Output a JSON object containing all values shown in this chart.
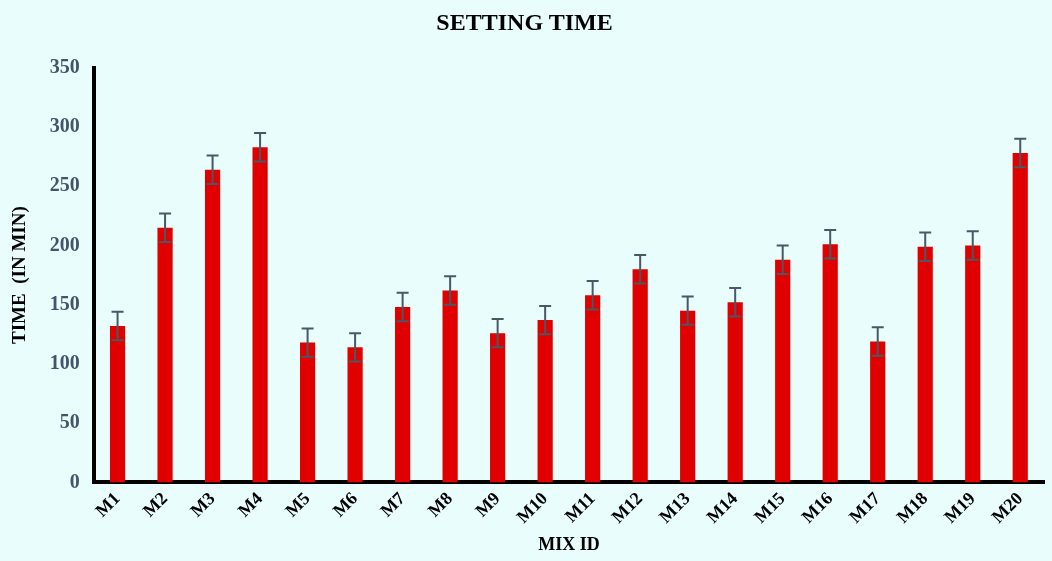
{
  "chart_data": {
    "type": "bar",
    "title": "SETTING TIME",
    "xlabel": "MIX ID",
    "ylabel": "TIME  (IN MIN)",
    "categories": [
      "M1",
      "M2",
      "M3",
      "M4",
      "M5",
      "M6",
      "M7",
      "M8",
      "M9",
      "M10",
      "M11",
      "M12",
      "M13",
      "M14",
      "M15",
      "M16",
      "M17",
      "M18",
      "M19",
      "M20"
    ],
    "values": [
      132,
      215,
      264,
      283,
      118,
      114,
      148,
      162,
      126,
      137,
      158,
      180,
      145,
      152,
      188,
      201,
      119,
      199,
      200,
      278
    ],
    "errors": [
      12,
      12,
      12,
      12,
      12,
      12,
      12,
      12,
      12,
      12,
      12,
      12,
      12,
      12,
      12,
      12,
      12,
      12,
      12,
      12
    ],
    "color": "#e00000",
    "ylim": [
      0,
      350
    ],
    "yticks": [
      0,
      50,
      100,
      150,
      200,
      250,
      300,
      350
    ],
    "grid": false,
    "legend": false
  }
}
